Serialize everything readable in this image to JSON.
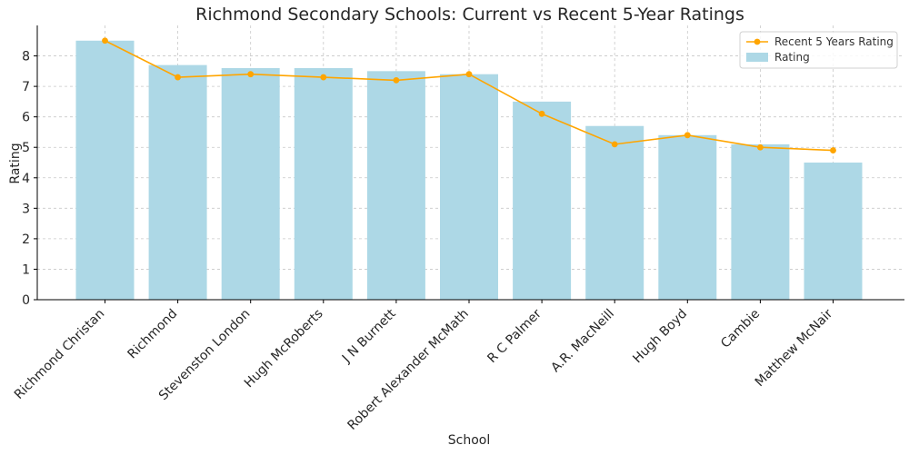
{
  "chart_data": {
    "type": "bar",
    "title": "Richmond Secondary Schools: Current vs Recent 5-Year Ratings",
    "xlabel": "School",
    "ylabel": "Rating",
    "ylim": [
      0,
      9
    ],
    "yticks": [
      0,
      1,
      2,
      3,
      4,
      5,
      6,
      7,
      8
    ],
    "grid": true,
    "legend_position": "top-right",
    "categories": [
      "Richmond Christan",
      "Richmond",
      "Stevenston London",
      "Hugh McRoberts",
      "J N Burnett",
      "Robert Alexander McMath",
      "R C Palmer",
      "A.R. MacNeill",
      "Hugh Boyd",
      "Cambie",
      "Matthew McNair"
    ],
    "series": [
      {
        "name": "Rating",
        "kind": "bar",
        "color": "#add8e6",
        "values": [
          8.5,
          7.7,
          7.6,
          7.6,
          7.5,
          7.4,
          6.5,
          5.7,
          5.4,
          5.1,
          4.5
        ]
      },
      {
        "name": "Recent 5 Years Rating",
        "kind": "line",
        "color": "#ffa500",
        "values": [
          8.5,
          7.3,
          7.4,
          7.3,
          7.2,
          7.4,
          6.1,
          5.1,
          5.4,
          5.0,
          4.9
        ]
      }
    ]
  }
}
